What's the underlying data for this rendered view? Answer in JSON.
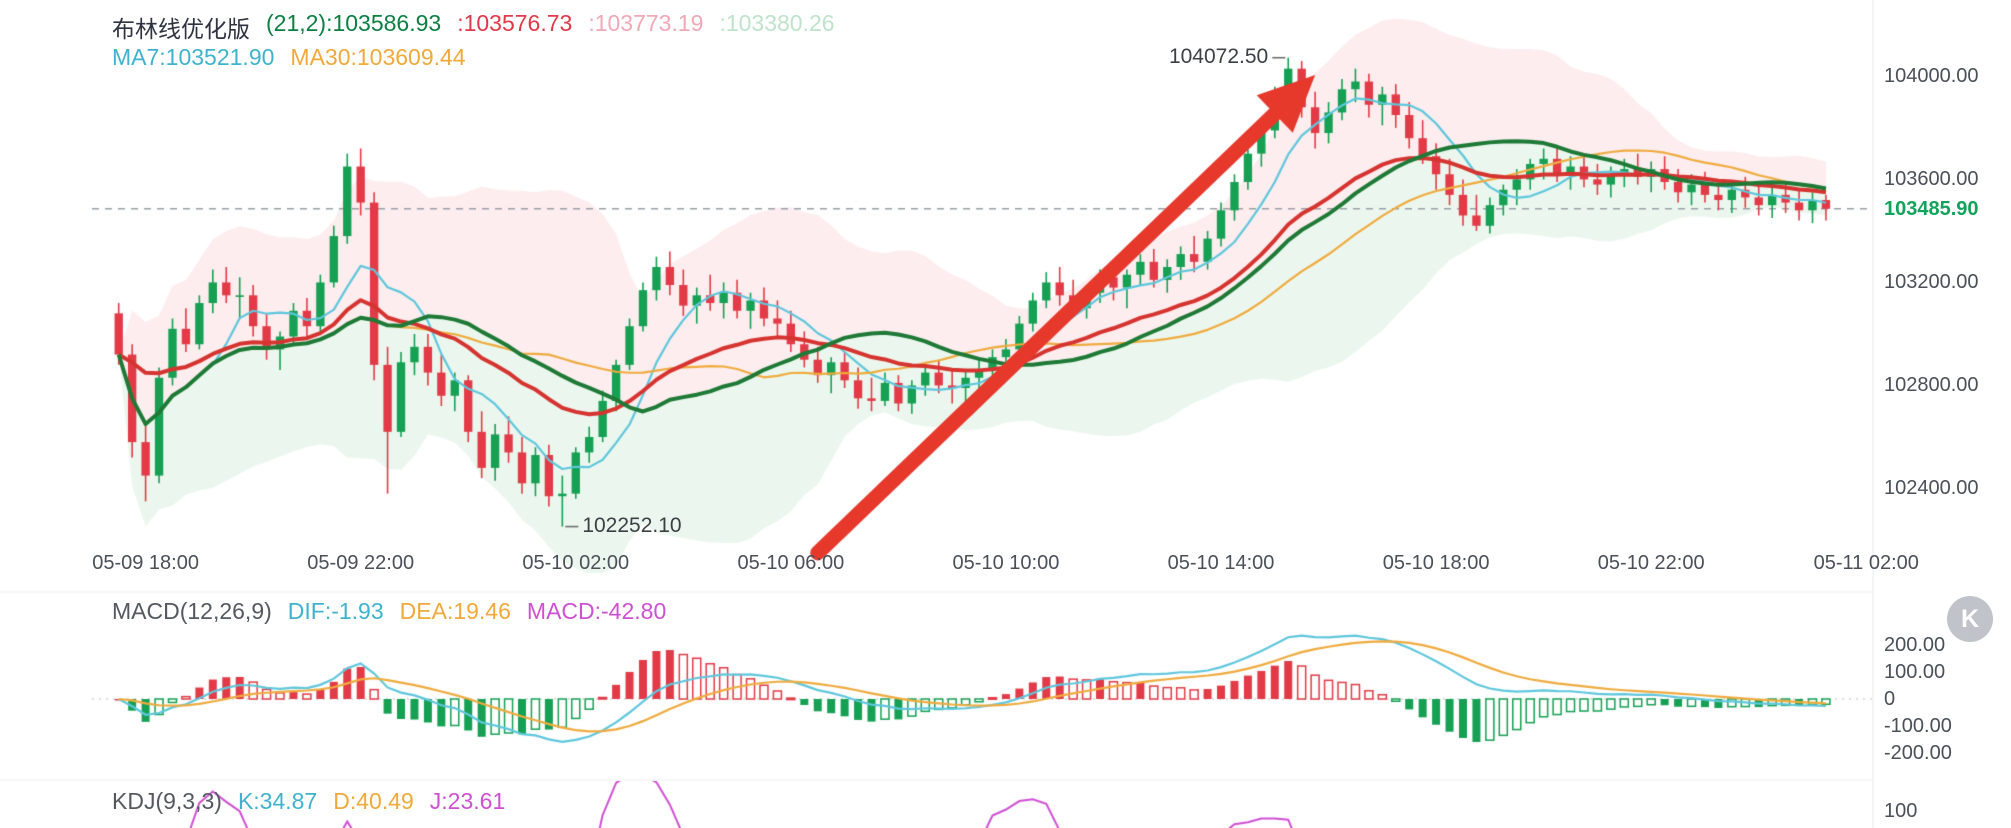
{
  "legend": {
    "title": "布林线优化版",
    "boll_mid": "(21,2):103586.93",
    "boll_red": ":103576.73",
    "boll_upper": ":103773.19",
    "boll_lower": ":103380.26",
    "ma7": "MA7:103521.90",
    "ma30": "MA30:103609.44"
  },
  "macd_header": {
    "name": "MACD(12,26,9)",
    "dif": "DIF:-1.93",
    "dea": "DEA:19.46",
    "macd": "MACD:-42.80"
  },
  "kdj_header": {
    "name": "KDJ(9,3,3)",
    "k": "K:34.87",
    "d": "D:40.49",
    "j": "J:23.61"
  },
  "axis": {
    "current_price_label": "103485.90",
    "kdj_top_label": "100"
  },
  "annotations": {
    "high_label": "104072.50",
    "low_label": "102252.10"
  },
  "k_badge": {
    "label": "K"
  },
  "colors": {
    "up": "#16a054",
    "down": "#e23b47",
    "boll_upper_fill": "rgba(240,140,158,0.16)",
    "boll_lower_fill": "rgba(130,205,150,0.16)",
    "line_red": "#d63430",
    "line_green": "#1e7a36",
    "ma7": "#5fc7dd",
    "ma30": "#f0ab3e",
    "dif": "#5fc7dd",
    "dea": "#f0ab3e",
    "arrow": "#e7382c",
    "dashed": "#9aa0a8",
    "current_price": "#12a35b",
    "j_line": "#cf50d4",
    "axis_text": "#4a4f58"
  },
  "chart_data": [
    {
      "name": "main",
      "type": "candlestick",
      "title": "布林线优化版",
      "boll_params": "(21,2)",
      "start_time": "05-09 17:30",
      "interval_minutes": 15,
      "x_labels": [
        "05-09 18:00",
        "05-09 22:00",
        "05-10 02:00",
        "05-10 06:00",
        "05-10 10:00",
        "05-10 14:00",
        "05-10 18:00",
        "05-10 22:00",
        "05-11 02:00"
      ],
      "y_ticks": [
        104000,
        103600,
        103200,
        102800,
        102400
      ],
      "y_tick_labels": [
        "104000.00",
        "103600.00",
        "103200.00",
        "102800.00",
        "102400.00"
      ],
      "ylim": [
        102200,
        104250
      ],
      "current_price": 103485.9,
      "high_annotation": {
        "value": 104072.5,
        "label": "104072.50"
      },
      "low_annotation": {
        "value": 102252.1,
        "label": "102252.10"
      },
      "overlay_last_values": {
        "boll_mid": 103586.93,
        "boll_red": 103576.73,
        "boll_upper": 103773.19,
        "boll_lower": 103380.26,
        "ma7": 103521.9,
        "ma30": 103609.44
      },
      "arrow": {
        "from": {
          "index": 52,
          "price": 102150
        },
        "to": {
          "index": 89,
          "price": 104005
        }
      },
      "candles": [
        [
          103080,
          103120,
          102880,
          102920
        ],
        [
          102920,
          102960,
          102520,
          102580
        ],
        [
          102580,
          102650,
          102350,
          102450
        ],
        [
          102450,
          102870,
          102420,
          102830
        ],
        [
          102830,
          103060,
          102800,
          103020
        ],
        [
          103020,
          103100,
          102930,
          102960
        ],
        [
          102960,
          103150,
          102940,
          103120
        ],
        [
          103120,
          103250,
          103080,
          103200
        ],
        [
          103200,
          103260,
          103120,
          103150
        ],
        [
          103150,
          103220,
          103060,
          103150
        ],
        [
          103150,
          103190,
          102990,
          103030
        ],
        [
          103030,
          103080,
          102900,
          102940
        ],
        [
          102940,
          103010,
          102860,
          102990
        ],
        [
          102990,
          103120,
          102960,
          103090
        ],
        [
          103090,
          103140,
          102980,
          103030
        ],
        [
          103030,
          103230,
          103010,
          103200
        ],
        [
          103200,
          103420,
          103180,
          103380
        ],
        [
          103380,
          103700,
          103350,
          103650
        ],
        [
          103650,
          103720,
          103460,
          103510
        ],
        [
          103510,
          103550,
          102820,
          102880
        ],
        [
          102880,
          102950,
          102380,
          102620
        ],
        [
          102620,
          102930,
          102600,
          102890
        ],
        [
          102890,
          103000,
          102840,
          102950
        ],
        [
          102950,
          103000,
          102800,
          102850
        ],
        [
          102850,
          102920,
          102720,
          102760
        ],
        [
          102760,
          102850,
          102700,
          102820
        ],
        [
          102820,
          102840,
          102580,
          102620
        ],
        [
          102620,
          102700,
          102440,
          102480
        ],
        [
          102480,
          102650,
          102430,
          102610
        ],
        [
          102610,
          102680,
          102500,
          102540
        ],
        [
          102540,
          102600,
          102380,
          102420
        ],
        [
          102420,
          102560,
          102370,
          102530
        ],
        [
          102530,
          102570,
          102330,
          102370
        ],
        [
          102370,
          102450,
          102252.1,
          102380
        ],
        [
          102380,
          102560,
          102360,
          102540
        ],
        [
          102540,
          102640,
          102500,
          102600
        ],
        [
          102600,
          102780,
          102580,
          102740
        ],
        [
          102740,
          102900,
          102700,
          102880
        ],
        [
          102880,
          103060,
          102860,
          103030
        ],
        [
          103030,
          103200,
          103010,
          103170
        ],
        [
          103170,
          103300,
          103130,
          103260
        ],
        [
          103260,
          103320,
          103150,
          103190
        ],
        [
          103190,
          103250,
          103070,
          103110
        ],
        [
          103110,
          103180,
          103040,
          103150
        ],
        [
          103150,
          103230,
          103090,
          103120
        ],
        [
          103120,
          103200,
          103060,
          103160
        ],
        [
          103160,
          103210,
          103060,
          103090
        ],
        [
          103090,
          103160,
          103020,
          103130
        ],
        [
          103130,
          103180,
          103030,
          103060
        ],
        [
          103060,
          103130,
          102990,
          103040
        ],
        [
          103040,
          103090,
          102930,
          102960
        ],
        [
          102960,
          103010,
          102870,
          102900
        ],
        [
          102900,
          102950,
          102810,
          102840
        ],
        [
          102840,
          102910,
          102770,
          102890
        ],
        [
          102890,
          102930,
          102790,
          102820
        ],
        [
          102820,
          102870,
          102710,
          102750
        ],
        [
          102750,
          102830,
          102700,
          102740
        ],
        [
          102740,
          102850,
          102720,
          102810
        ],
        [
          102810,
          102840,
          102700,
          102730
        ],
        [
          102730,
          102820,
          102690,
          102800
        ],
        [
          102800,
          102880,
          102760,
          102850
        ],
        [
          102850,
          102900,
          102770,
          102800
        ],
        [
          102800,
          102860,
          102730,
          102790
        ],
        [
          102790,
          102860,
          102720,
          102830
        ],
        [
          102830,
          102900,
          102780,
          102860
        ],
        [
          102860,
          102940,
          102820,
          102910
        ],
        [
          102910,
          102980,
          102860,
          102940
        ],
        [
          102940,
          103070,
          102920,
          103040
        ],
        [
          103040,
          103160,
          103010,
          103130
        ],
        [
          103130,
          103240,
          103100,
          103200
        ],
        [
          103200,
          103260,
          103110,
          103150
        ],
        [
          103150,
          103210,
          103070,
          103100
        ],
        [
          103100,
          103190,
          103060,
          103160
        ],
        [
          103160,
          103250,
          103120,
          103220
        ],
        [
          103220,
          103270,
          103130,
          103180
        ],
        [
          103180,
          103250,
          103100,
          103230
        ],
        [
          103230,
          103310,
          103190,
          103280
        ],
        [
          103280,
          103330,
          103180,
          103210
        ],
        [
          103210,
          103290,
          103160,
          103260
        ],
        [
          103260,
          103340,
          103210,
          103310
        ],
        [
          103310,
          103380,
          103240,
          103280
        ],
        [
          103280,
          103400,
          103250,
          103370
        ],
        [
          103370,
          103510,
          103340,
          103480
        ],
        [
          103480,
          103620,
          103440,
          103590
        ],
        [
          103590,
          103740,
          103560,
          103700
        ],
        [
          103700,
          103820,
          103650,
          103790
        ],
        [
          103790,
          103960,
          103760,
          103920
        ],
        [
          103920,
          104072.5,
          103880,
          104030
        ],
        [
          104030,
          104060,
          103840,
          103880
        ],
        [
          103880,
          103940,
          103720,
          103780
        ],
        [
          103780,
          103900,
          103740,
          103860
        ],
        [
          103860,
          103990,
          103830,
          103950
        ],
        [
          103950,
          104030,
          103900,
          103980
        ],
        [
          103980,
          104010,
          103840,
          103890
        ],
        [
          103890,
          103960,
          103810,
          103930
        ],
        [
          103930,
          103970,
          103800,
          103850
        ],
        [
          103850,
          103900,
          103720,
          103760
        ],
        [
          103760,
          103830,
          103660,
          103690
        ],
        [
          103690,
          103740,
          103560,
          103620
        ],
        [
          103620,
          103680,
          103500,
          103540
        ],
        [
          103540,
          103600,
          103420,
          103460
        ],
        [
          103460,
          103540,
          103400,
          103420
        ],
        [
          103420,
          103530,
          103390,
          103500
        ],
        [
          103500,
          103580,
          103460,
          103560
        ],
        [
          103560,
          103640,
          103500,
          103600
        ],
        [
          103600,
          103680,
          103560,
          103660
        ],
        [
          103660,
          103720,
          103600,
          103680
        ],
        [
          103680,
          103730,
          103590,
          103620
        ],
        [
          103620,
          103690,
          103560,
          103650
        ],
        [
          103650,
          103700,
          103570,
          103600
        ],
        [
          103600,
          103660,
          103540,
          103580
        ],
        [
          103580,
          103650,
          103530,
          103620
        ],
        [
          103620,
          103680,
          103570,
          103640
        ],
        [
          103640,
          103700,
          103580,
          103610
        ],
        [
          103610,
          103670,
          103550,
          103640
        ],
        [
          103640,
          103690,
          103560,
          103590
        ],
        [
          103590,
          103640,
          103510,
          103550
        ],
        [
          103550,
          103620,
          103500,
          103580
        ],
        [
          103580,
          103630,
          103510,
          103540
        ],
        [
          103540,
          103600,
          103480,
          103520
        ],
        [
          103520,
          103590,
          103470,
          103560
        ],
        [
          103560,
          103610,
          103490,
          103530
        ],
        [
          103530,
          103580,
          103460,
          103500
        ],
        [
          103500,
          103570,
          103450,
          103540
        ],
        [
          103540,
          103590,
          103470,
          103510
        ],
        [
          103510,
          103560,
          103440,
          103480
        ],
        [
          103480,
          103550,
          103430,
          103520
        ],
        [
          103520,
          103540,
          103440,
          103485.9
        ]
      ]
    },
    {
      "name": "macd",
      "type": "bar",
      "params": [
        12,
        26,
        9
      ],
      "y_ticks": [
        200,
        100,
        0,
        -100,
        -200
      ],
      "y_tick_labels": [
        "200.00",
        "100.00",
        "0",
        "-100.00",
        "-200.00"
      ],
      "last_values": {
        "dif": -1.93,
        "dea": 19.46,
        "macd": -42.8
      }
    },
    {
      "name": "kdj",
      "type": "line",
      "params": [
        9,
        3,
        3
      ],
      "y_top_label": "100",
      "last_values": {
        "k": 34.87,
        "d": 40.49,
        "j": 23.61
      }
    }
  ]
}
